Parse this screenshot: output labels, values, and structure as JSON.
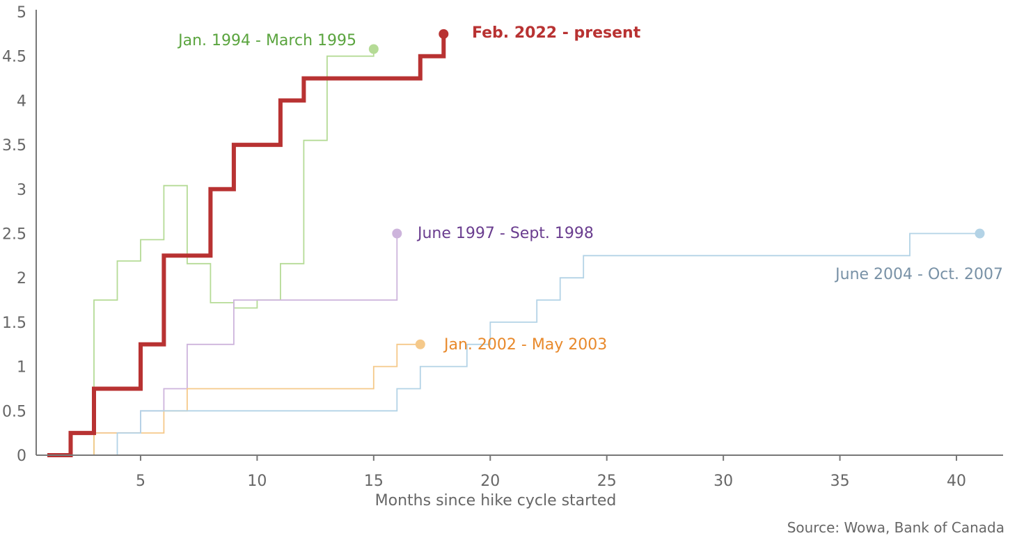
{
  "chart_data": {
    "type": "line",
    "step": true,
    "xlabel": "Months since hike cycle started",
    "ylabel": "",
    "xlim": [
      1,
      42
    ],
    "ylim": [
      0,
      5
    ],
    "x_ticks": [
      5,
      10,
      15,
      20,
      25,
      30,
      35,
      40
    ],
    "y_ticks": [
      0,
      0.5,
      1,
      1.5,
      2,
      2.5,
      3,
      3.5,
      4,
      4.5,
      5
    ],
    "y_tick_labels": [
      "0",
      "0.5",
      "1",
      "1.5",
      "2",
      "2.5",
      "3",
      "3.5",
      "4",
      "4.5",
      "5"
    ],
    "grid": false,
    "source": "Source: Wowa, Bank of Canada",
    "series": [
      {
        "name": "Jan. 1994 - March 1995",
        "color": "#b5db96",
        "label_color": "#5aa43e",
        "width": 1.8,
        "points": [
          [
            3,
            0
          ],
          [
            3,
            1.75
          ],
          [
            4,
            1.75
          ],
          [
            4,
            2.19
          ],
          [
            5,
            2.19
          ],
          [
            5,
            2.43
          ],
          [
            6,
            2.43
          ],
          [
            6,
            3.04
          ],
          [
            7,
            3.04
          ],
          [
            7,
            2.16
          ],
          [
            8,
            2.16
          ],
          [
            8,
            1.72
          ],
          [
            9,
            1.72
          ],
          [
            9,
            1.66
          ],
          [
            10,
            1.66
          ],
          [
            10,
            1.75
          ],
          [
            11,
            1.75
          ],
          [
            11,
            2.16
          ],
          [
            12,
            2.16
          ],
          [
            12,
            3.55
          ],
          [
            13,
            3.55
          ],
          [
            13,
            4.5
          ],
          [
            15,
            4.5
          ],
          [
            15,
            4.58
          ]
        ]
      },
      {
        "name": "June 1997 - Sept. 1998",
        "color": "#cdb4dc",
        "label_color": "#6a3d8f",
        "width": 1.8,
        "points": [
          [
            1,
            0
          ],
          [
            2,
            0
          ],
          [
            2,
            0.25
          ],
          [
            5,
            0.25
          ],
          [
            5,
            0.5
          ],
          [
            6,
            0.5
          ],
          [
            6,
            0.75
          ],
          [
            7,
            0.75
          ],
          [
            7,
            1.25
          ],
          [
            9,
            1.25
          ],
          [
            9,
            1.75
          ],
          [
            16,
            1.75
          ],
          [
            16,
            2.5
          ]
        ]
      },
      {
        "name": "Jan. 2002 - May 2003",
        "color": "#f5c98a",
        "label_color": "#e8892b",
        "width": 1.8,
        "points": [
          [
            3,
            0
          ],
          [
            3,
            0.25
          ],
          [
            6,
            0.25
          ],
          [
            6,
            0.5
          ],
          [
            7,
            0.5
          ],
          [
            7,
            0.75
          ],
          [
            15,
            0.75
          ],
          [
            15,
            1.0
          ],
          [
            16,
            1.0
          ],
          [
            16,
            1.25
          ],
          [
            17,
            1.25
          ]
        ]
      },
      {
        "name": "June 2004 - Oct. 2007",
        "color": "#b3d3e6",
        "label_color": "#7891a6",
        "width": 1.8,
        "points": [
          [
            4,
            0
          ],
          [
            4,
            0.25
          ],
          [
            5,
            0.25
          ],
          [
            5,
            0.5
          ],
          [
            16,
            0.5
          ],
          [
            16,
            0.75
          ],
          [
            17,
            0.75
          ],
          [
            17,
            1.0
          ],
          [
            19,
            1.0
          ],
          [
            19,
            1.25
          ],
          [
            20,
            1.25
          ],
          [
            20,
            1.5
          ],
          [
            22,
            1.5
          ],
          [
            22,
            1.75
          ],
          [
            23,
            1.75
          ],
          [
            23,
            2.0
          ],
          [
            24,
            2.0
          ],
          [
            24,
            2.25
          ],
          [
            38,
            2.25
          ],
          [
            38,
            2.5
          ],
          [
            41,
            2.5
          ]
        ]
      },
      {
        "name": "Feb. 2022 - present",
        "color": "#b83232",
        "label_color": "#b83232",
        "width": 6,
        "points": [
          [
            1,
            0
          ],
          [
            2,
            0
          ],
          [
            2,
            0.25
          ],
          [
            3,
            0.25
          ],
          [
            3,
            0.75
          ],
          [
            5,
            0.75
          ],
          [
            5,
            1.25
          ],
          [
            6,
            1.25
          ],
          [
            6,
            2.25
          ],
          [
            8,
            2.25
          ],
          [
            8,
            3.0
          ],
          [
            9,
            3.0
          ],
          [
            9,
            3.5
          ],
          [
            11,
            3.5
          ],
          [
            11,
            4.0
          ],
          [
            12,
            4.0
          ],
          [
            12,
            4.25
          ],
          [
            17,
            4.25
          ],
          [
            17,
            4.5
          ],
          [
            18,
            4.5
          ],
          [
            18,
            4.75
          ]
        ]
      }
    ]
  }
}
